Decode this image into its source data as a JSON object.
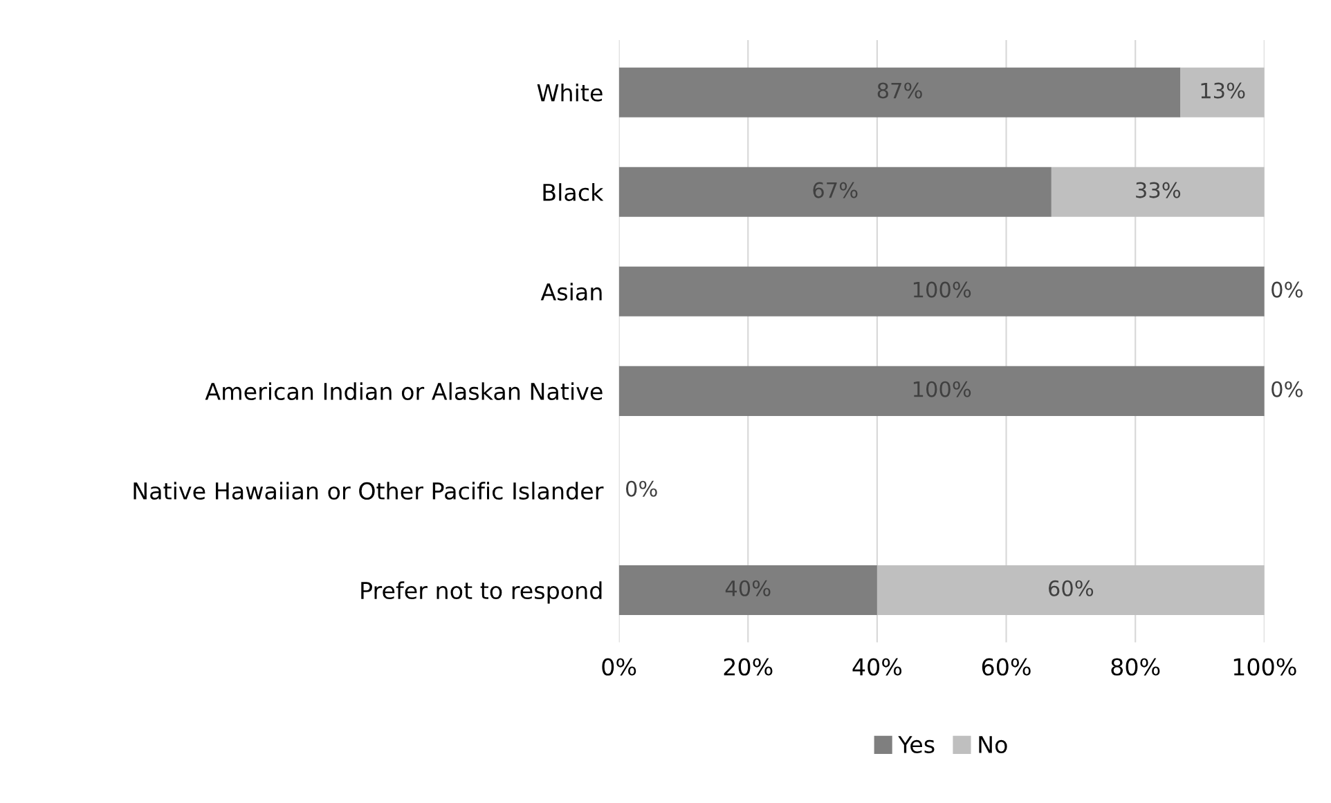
{
  "chart_data": {
    "type": "bar",
    "orientation": "horizontal",
    "stacked": true,
    "categories": [
      "White",
      "Black",
      "Asian",
      "American Indian or Alaskan Native",
      "Native Hawaiian or Other Pacific Islander",
      "Prefer not to respond"
    ],
    "series": [
      {
        "name": "Yes",
        "color": "#7f7f7f",
        "values": [
          87,
          67,
          100,
          100,
          0,
          40
        ],
        "value_labels": [
          "87%",
          "67%",
          "100%",
          "100%",
          "0%",
          "40%"
        ]
      },
      {
        "name": "No",
        "color": "#bfbfbf",
        "values": [
          13,
          33,
          0,
          0,
          0,
          60
        ],
        "value_labels": [
          "13%",
          "33%",
          "0%",
          "0%",
          null,
          "60%"
        ]
      }
    ],
    "xlim": [
      0,
      100
    ],
    "xticks": [
      {
        "value": 0,
        "label": "0%"
      },
      {
        "value": 20,
        "label": "20%"
      },
      {
        "value": 40,
        "label": "40%"
      },
      {
        "value": 60,
        "label": "60%"
      },
      {
        "value": 80,
        "label": "80%"
      },
      {
        "value": 100,
        "label": "100%"
      }
    ],
    "grid": "x",
    "legend": "bottom"
  }
}
